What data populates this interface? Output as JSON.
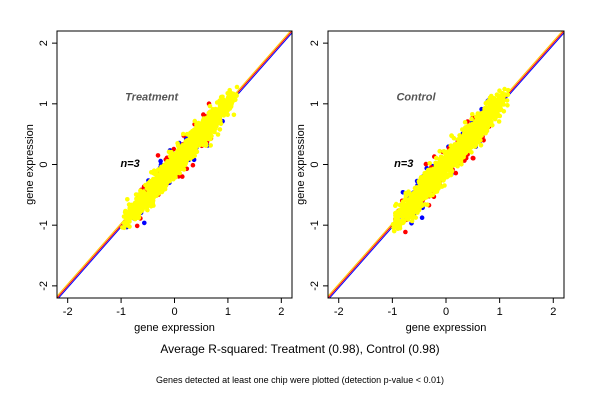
{
  "chart_data": [
    {
      "type": "scatter",
      "panel_label": "Treatment",
      "n_label": "n=3",
      "xlabel": "gene expression",
      "ylabel": "gene expression",
      "xlim": [
        -2.2,
        2.2
      ],
      "ylim": [
        -2.2,
        2.2
      ],
      "x_ticks": [
        -2,
        -1,
        0,
        1,
        2
      ],
      "y_ticks": [
        -2,
        -1,
        0,
        1,
        2
      ],
      "grid": false,
      "reference_lines": [
        {
          "color": "#ff0000",
          "slope": 1,
          "intercept": 0
        },
        {
          "color": "#0000ff",
          "slope": 1,
          "intercept": -0.03
        },
        {
          "color": "#ffcc00",
          "slope": 1,
          "intercept": 0.03
        }
      ],
      "series": [
        {
          "color": "#0000ff",
          "x_range": [
            -0.95,
            1.05
          ],
          "spread": 0.14,
          "count": 90,
          "seed": 11
        },
        {
          "color": "#ff0000",
          "x_range": [
            -0.95,
            1.05
          ],
          "spread": 0.14,
          "count": 160,
          "seed": 23
        },
        {
          "color": "#ffff00",
          "x_range": [
            -1.0,
            1.2
          ],
          "spread": 0.1,
          "count": 1500,
          "seed": 37
        }
      ]
    },
    {
      "type": "scatter",
      "panel_label": "Control",
      "n_label": "n=3",
      "xlabel": "gene expression",
      "ylabel": "gene expression",
      "xlim": [
        -2.2,
        2.2
      ],
      "ylim": [
        -2.2,
        2.2
      ],
      "x_ticks": [
        -2,
        -1,
        0,
        1,
        2
      ],
      "y_ticks": [
        -2,
        -1,
        0,
        1,
        2
      ],
      "grid": false,
      "reference_lines": [
        {
          "color": "#ff0000",
          "slope": 1,
          "intercept": 0
        },
        {
          "color": "#0000ff",
          "slope": 1,
          "intercept": -0.03
        },
        {
          "color": "#ffcc00",
          "slope": 1,
          "intercept": 0.03
        }
      ],
      "series": [
        {
          "color": "#0000ff",
          "x_range": [
            -1.0,
            1.05
          ],
          "spread": 0.15,
          "count": 90,
          "seed": 53
        },
        {
          "color": "#ff0000",
          "x_range": [
            -1.0,
            1.05
          ],
          "spread": 0.15,
          "count": 140,
          "seed": 67
        },
        {
          "color": "#ffff00",
          "x_range": [
            -1.05,
            1.2
          ],
          "spread": 0.11,
          "count": 1500,
          "seed": 79
        }
      ]
    }
  ],
  "captions": {
    "main": "Average R-squared: Treatment (0.98), Control (0.98)",
    "note": "Genes detected at least one chip were plotted (detection p-value < 0.01)"
  }
}
